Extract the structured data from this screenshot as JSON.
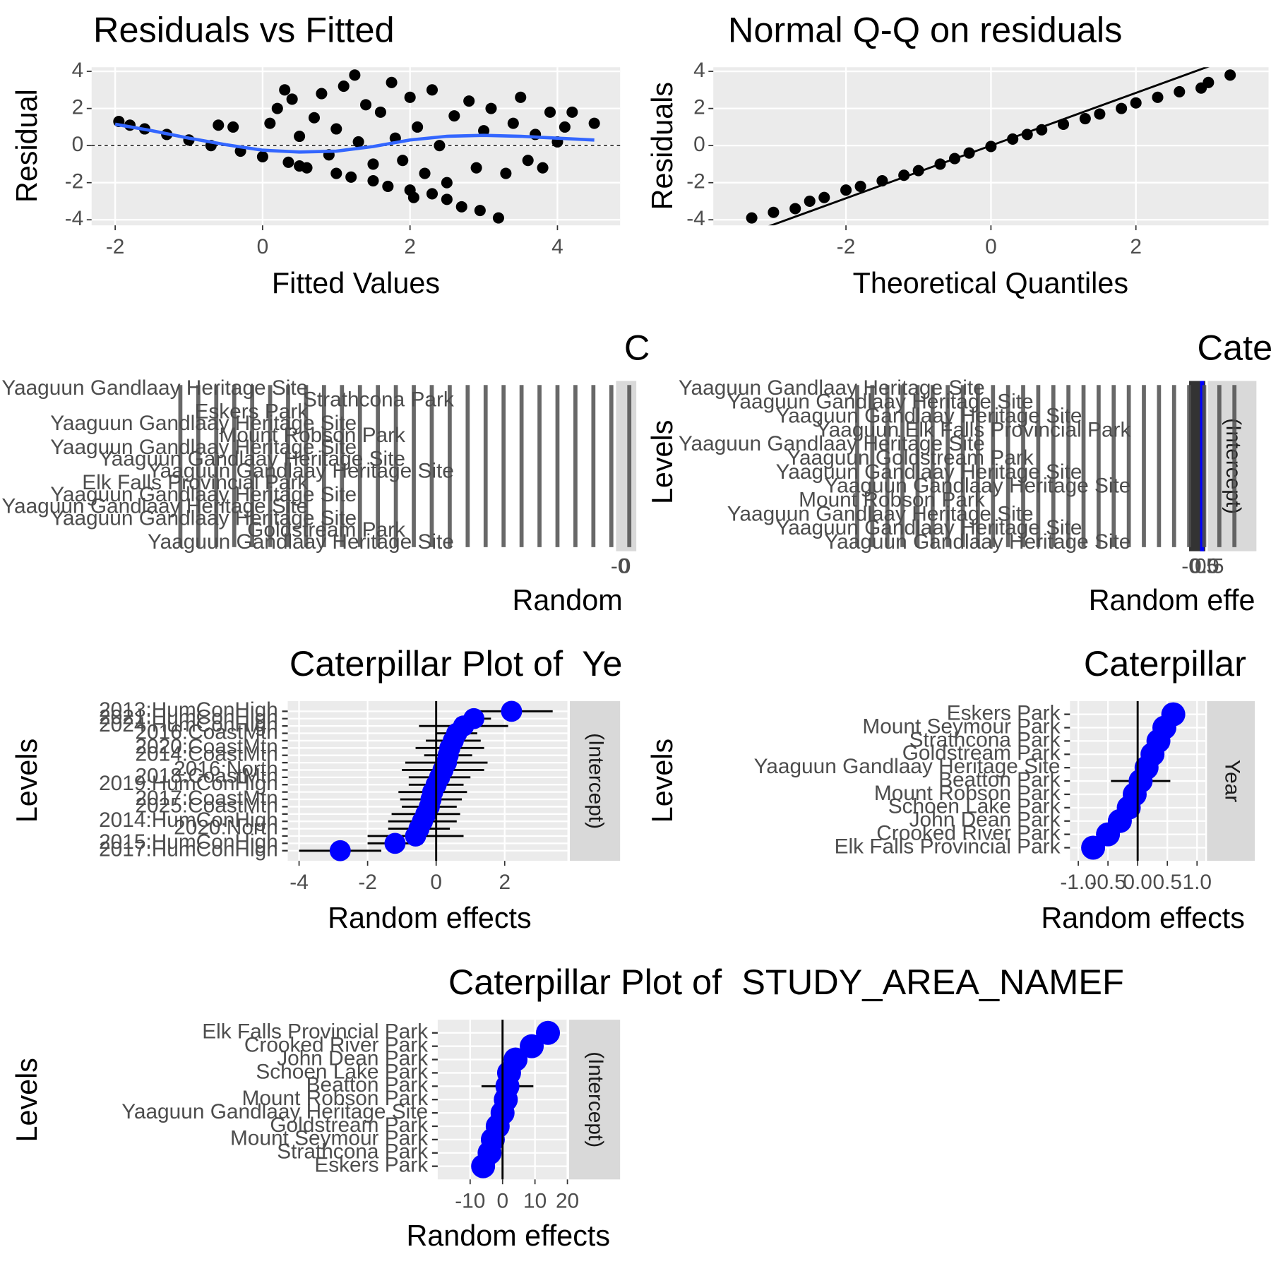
{
  "chart_data": [
    {
      "type": "scatter",
      "title": "Residuals vs Fitted",
      "x_label": "Fitted Values",
      "y_label": "Residual",
      "x": [
        -1.95,
        -1.8,
        -1.6,
        -1.3,
        -1.0,
        -0.7,
        -0.6,
        -0.4,
        -0.3,
        0,
        0.1,
        0.2,
        0.3,
        0.35,
        0.4,
        0.5,
        0.5,
        0.6,
        0.7,
        0.8,
        0.9,
        1.0,
        1.0,
        1.1,
        1.2,
        1.25,
        1.3,
        1.4,
        1.5,
        1.5,
        1.6,
        1.7,
        1.75,
        1.8,
        1.9,
        2.0,
        2.0,
        2.05,
        2.1,
        2.2,
        2.3,
        2.3,
        2.4,
        2.5,
        2.5,
        2.6,
        2.7,
        2.8,
        2.9,
        2.95,
        3.0,
        3.1,
        3.2,
        3.3,
        3.4,
        3.5,
        3.6,
        3.7,
        3.8,
        3.9,
        4.0,
        4.1,
        4.2,
        4.5
      ],
      "y": [
        1.3,
        1.1,
        0.9,
        0.6,
        0.3,
        0.0,
        1.1,
        1.0,
        -0.3,
        -0.6,
        1.2,
        2.0,
        3.0,
        -0.9,
        2.5,
        0.5,
        -1.1,
        -1.2,
        1.5,
        2.8,
        -0.5,
        0.9,
        -1.5,
        3.2,
        -1.7,
        3.8,
        0.2,
        2.2,
        -1.0,
        -1.9,
        1.8,
        -2.2,
        3.4,
        0.4,
        -0.8,
        2.6,
        -2.4,
        -2.8,
        1.0,
        -1.5,
        3.0,
        -2.6,
        0.0,
        -2.0,
        -2.9,
        1.6,
        -3.3,
        2.4,
        -1.2,
        -3.5,
        0.8,
        2.0,
        -3.9,
        -1.5,
        1.2,
        2.6,
        -0.8,
        0.6,
        -1.2,
        1.8,
        0.2,
        1.0,
        1.8,
        1.2
      ],
      "color": "#000000",
      "hline": 0,
      "smooth": {
        "color": "#3366ff",
        "x": [
          -2,
          -1.5,
          -1,
          -0.5,
          0,
          0.5,
          1,
          1.5,
          2,
          2.5,
          3,
          3.5,
          4,
          4.5
        ],
        "y": [
          1.15,
          0.8,
          0.4,
          0.05,
          -0.25,
          -0.35,
          -0.3,
          -0.05,
          0.3,
          0.5,
          0.55,
          0.5,
          0.4,
          0.3
        ]
      },
      "xlim": [
        -2.32,
        4.85
      ],
      "ylim": [
        -4.3,
        4.22
      ],
      "xticks": [
        -2,
        0,
        2,
        4
      ],
      "yticks": [
        -4,
        -2,
        0,
        2,
        4
      ],
      "grid": true
    },
    {
      "type": "scatter",
      "title": "Normal Q-Q on residuals",
      "x_label": "Theoretical Quantiles",
      "y_label": "Residuals",
      "x": [
        -3.3,
        -3.0,
        -2.7,
        -2.5,
        -2.3,
        -2.0,
        -1.8,
        -1.5,
        -1.2,
        -1.0,
        -0.7,
        -0.5,
        -0.3,
        0,
        0.3,
        0.5,
        0.7,
        1.0,
        1.3,
        1.5,
        1.8,
        2.0,
        2.3,
        2.6,
        2.9,
        3.0,
        3.3
      ],
      "y": [
        -3.9,
        -3.6,
        -3.4,
        -3.0,
        -2.8,
        -2.4,
        -2.2,
        -1.9,
        -1.6,
        -1.35,
        -1.0,
        -0.7,
        -0.4,
        -0.05,
        0.35,
        0.6,
        0.85,
        1.15,
        1.45,
        1.7,
        2.0,
        2.3,
        2.6,
        2.9,
        3.1,
        3.4,
        3.8
      ],
      "color": "#000000",
      "reference_line": {
        "slope": 1.42,
        "intercept": 0
      },
      "xlim": [
        -3.83,
        3.83
      ],
      "ylim": [
        -4.3,
        4.22
      ],
      "xticks": [
        -2,
        0,
        2
      ],
      "yticks": [
        -4,
        -2,
        0,
        2,
        4
      ],
      "grid": true
    },
    {
      "type": "overplot",
      "title": "C",
      "x_label": "Random",
      "categories": [
        "Yaaguun Gandlaay Heritage Site",
        "Yaaguun Gandlaay Heritage Site",
        "Mount Robson Park",
        "Yaaguun Gandlaay Heritage Site",
        "Elk Falls Provincial Park",
        "Yaaguun Gandlaay Heritage Site",
        "Goldstream Park",
        "Yaaguun Gandlaay Heritage Site",
        "Eskers Park",
        "Yaaguun Gandlaay Heritage Site",
        "Yaaguun Gandlaay Heritage Site",
        "Strathcona Park",
        "Yaaguun Gandlaay Heritage Site",
        "Yaaguun Gandlaay Heritage Site"
      ],
      "tick_texts": [
        "-0",
        "0"
      ]
    },
    {
      "type": "overplot",
      "title": "Cate",
      "x_label": "Random effe",
      "y_label": "Levels",
      "facet": "(Intercept)",
      "categories": [
        "Yaaguun Gandlaay Heritage Site",
        "Yaaguun Gandlaay Heritage Site",
        "Yaaguun Gandlaay Heritage Site",
        "Yaaguun Elk Falls Provincial Park",
        "Yaaguun Gandlaay Heritage Site",
        "Yaaguun Goldstream Park",
        "Yaaguun Gandlaay Heritage Site",
        "Yaaguun Gandlaay Heritage Site",
        "Mount Robson Park",
        "Yaaguun Gandlaay Heritage Site",
        "Yaaguun Gandlaay Heritage Site",
        "Yaaguun Gandlaay Heritage Site"
      ],
      "tick_texts": [
        "-0.5",
        "0.0",
        "0.5"
      ]
    },
    {
      "type": "caterpillar",
      "title": "Caterpillar Plot of  Ye",
      "x_label": "Random effects",
      "y_label": "Levels",
      "facet": "(Intercept)",
      "color": "#0000ff",
      "categories": [
        "2013:HumConHigh",
        "2021:HumConHigh",
        "2024:HumConHigh",
        "2016:CoastMtn",
        null,
        "2020:CoastMtn",
        "2014:CoastMtn",
        null,
        "2016:North",
        "2018:CoastMtn",
        "2019:HumConHigh",
        null,
        "2017:CoastMtn",
        "2025:CoastMtn",
        null,
        "2014:HumConHigh",
        "2020:North",
        null,
        "2015:HumConHigh",
        "2017:HumConHigh"
      ],
      "values": [
        2.2,
        1.1,
        0.8,
        0.6,
        0.5,
        0.4,
        0.35,
        0.3,
        0.2,
        0.1,
        0.0,
        -0.1,
        -0.15,
        -0.2,
        -0.3,
        -0.4,
        -0.5,
        -0.6,
        -1.2,
        -2.8
      ],
      "errors": [
        1.2,
        0.5,
        1.3,
        0.6,
        0.8,
        1.0,
        0.7,
        1.2,
        1.2,
        0.9,
        0.8,
        1.0,
        0.9,
        0.8,
        1.0,
        1.0,
        0.9,
        1.4,
        0.8,
        1.2
      ],
      "xlim": [
        -4.33,
        3.83
      ],
      "xticks": [
        -4,
        -2,
        0,
        2
      ],
      "grid": true
    },
    {
      "type": "caterpillar",
      "title": "Caterpillar",
      "x_label": "Random effects",
      "y_label": "Levels",
      "facet": "Year",
      "color": "#0000ff",
      "categories": [
        "Eskers Park",
        "Mount Seymour Park",
        "Strathcona Park",
        "Goldstream Park",
        "Yaaguun Gandlaay Heritage Site",
        "Beatton Park",
        "Mount Robson Park",
        "Schoen Lake Park",
        "John Dean Park",
        "Crooked River Park",
        "Elk Falls Provincial Park"
      ],
      "values": [
        0.6,
        0.45,
        0.35,
        0.25,
        0.15,
        0.05,
        -0.05,
        -0.15,
        -0.3,
        -0.5,
        -0.75
      ],
      "errors": [
        0.05,
        0.05,
        0.05,
        0.05,
        0.05,
        0.5,
        0.05,
        0.05,
        0.05,
        0.05,
        0.05
      ],
      "xlim": [
        -1.14,
        1.14
      ],
      "xticks": [
        {
          "value": -1,
          "label": "-1.0"
        },
        -0.5,
        {
          "value": 0,
          "label": "0.0"
        },
        0.5,
        {
          "value": 1,
          "label": "1.0"
        }
      ],
      "grid": true
    },
    {
      "type": "caterpillar",
      "title": "Caterpillar Plot of  STUDY_AREA_NAMEF",
      "x_label": "Random effects",
      "y_label": "Levels",
      "facet": "(Intercept)",
      "color": "#0000ff",
      "categories": [
        "Elk Falls Provincial Park",
        "Crooked River Park",
        "John Dean Park",
        "Schoen Lake Park",
        "Beatton Park",
        "Mount Robson Park",
        "Yaaguun Gandlaay Heritage Site",
        "Goldstream Park",
        "Mount Seymour Park",
        "Strathcona Park",
        "Eskers Park"
      ],
      "values": [
        14,
        9,
        4,
        2,
        1.5,
        1,
        0,
        -1.5,
        -3,
        -4,
        -6
      ],
      "errors": [
        1,
        1,
        1,
        1,
        8,
        1,
        1,
        1,
        1,
        1,
        2
      ],
      "xlim": [
        -20,
        20
      ],
      "xticks": [
        -10,
        0,
        10,
        20
      ],
      "grid": true
    }
  ]
}
